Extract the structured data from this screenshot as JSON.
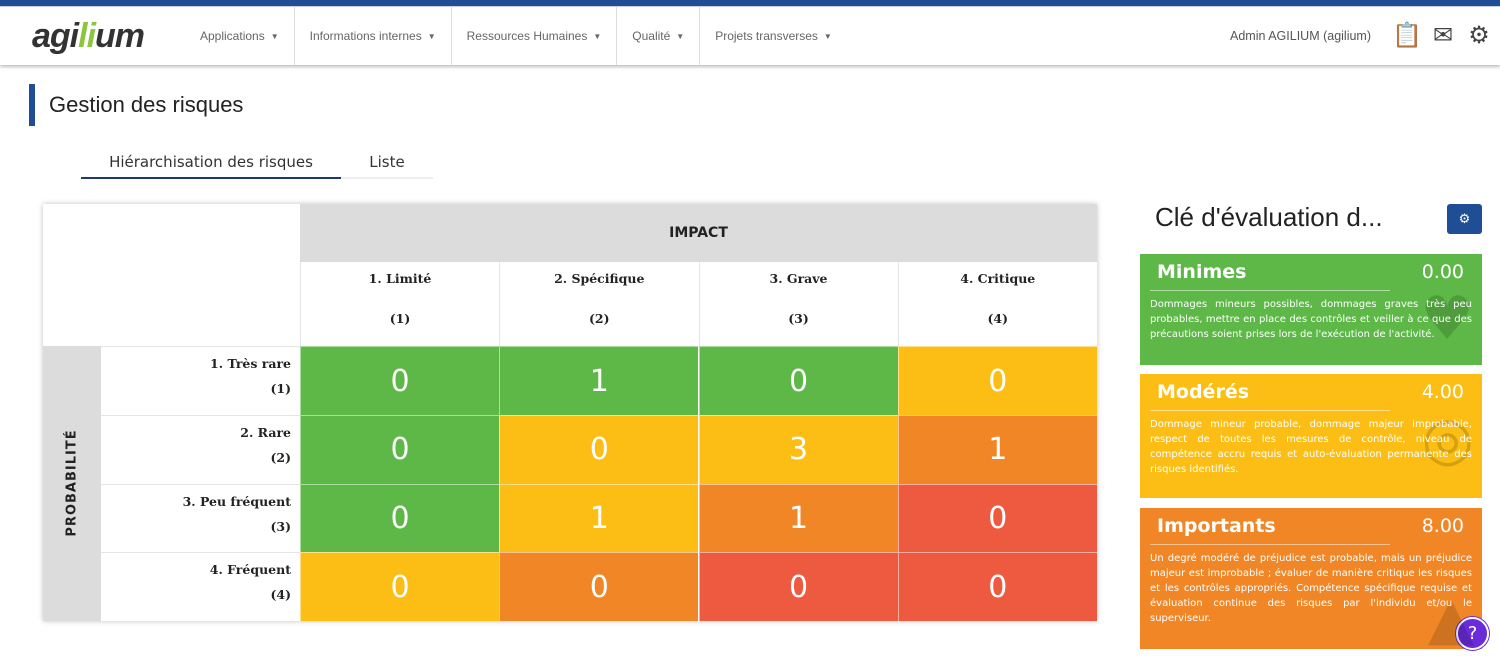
{
  "nav": {
    "logo": "agilium",
    "menu": [
      "Applications",
      "Informations internes",
      "Ressources Humaines",
      "Qualité",
      "Projets transverses"
    ],
    "user": "Admin AGILIUM (agilium)"
  },
  "page": {
    "title": "Gestion des risques",
    "tabs": [
      "Hiérarchisation des risques",
      "Liste"
    ],
    "active_tab": 0
  },
  "matrix": {
    "impact_label": "IMPACT",
    "probability_label": "PROBABILITÉ",
    "columns": [
      {
        "label": "1. Limité",
        "code": "(1)"
      },
      {
        "label": "2. Spécifique",
        "code": "(2)"
      },
      {
        "label": "3. Grave",
        "code": "(3)"
      },
      {
        "label": "4. Critique",
        "code": "(4)"
      }
    ],
    "rows": [
      {
        "label": "1. Très rare",
        "code": "(1)",
        "values": [
          "0",
          "1",
          "0",
          "0"
        ],
        "levels": [
          "green",
          "green",
          "green",
          "yellow"
        ]
      },
      {
        "label": "2. Rare",
        "code": "(2)",
        "values": [
          "0",
          "0",
          "3",
          "1"
        ],
        "levels": [
          "green",
          "yellow",
          "yellow",
          "orange"
        ]
      },
      {
        "label": "3. Peu fréquent",
        "code": "(3)",
        "values": [
          "0",
          "1",
          "1",
          "0"
        ],
        "levels": [
          "green",
          "yellow",
          "orange",
          "red"
        ]
      },
      {
        "label": "4. Fréquent",
        "code": "(4)",
        "values": [
          "0",
          "0",
          "0",
          "0"
        ],
        "levels": [
          "yellow",
          "orange",
          "red",
          "red"
        ]
      }
    ],
    "colors": {
      "green": "#5db847",
      "yellow": "#fcbe14",
      "orange": "#f18626",
      "red": "#ee5a40"
    }
  },
  "key": {
    "title": "Clé d'évaluation d...",
    "cards": [
      {
        "name": "Minimes",
        "value": "0.00",
        "color": "#5db847",
        "icon": "heart-icon",
        "description": "Dommages mineurs possibles, dommages graves très peu probables, mettre en place des contrôles et veiller à ce que des précautions soient prises lors de l'exécution de l'activité."
      },
      {
        "name": "Modérés",
        "value": "4.00",
        "color": "#fcbe14",
        "icon": "target-icon",
        "description": "Dommage mineur probable, dommage majeur improbable, respect de toutes les mesures de contrôle, niveau de compétence accru requis et auto-évaluation permanente des risques identifiés."
      },
      {
        "name": "Importants",
        "value": "8.00",
        "color": "#f18626",
        "icon": "warning-icon",
        "description": "Un degré modéré de préjudice est probable, mais un préjudice majeur est improbable ; évaluer de manière critique les risques et les contrôles appropriés. Compétence spécifique requise et évaluation continue des risques par l'individu et/ou le superviseur."
      }
    ]
  }
}
